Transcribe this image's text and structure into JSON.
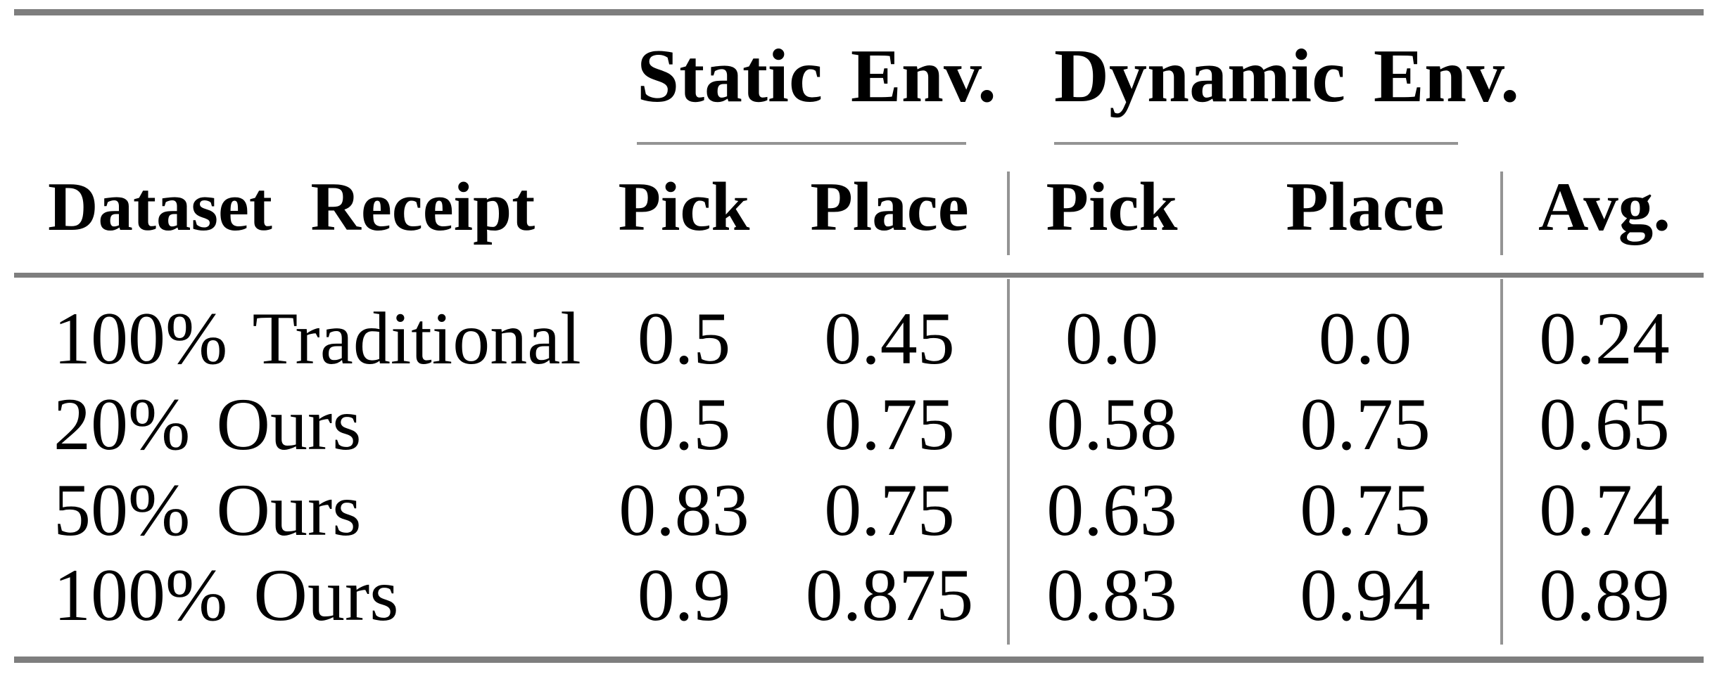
{
  "table": {
    "column_groups": [
      {
        "label": "Static Env.",
        "columns": [
          "Pick",
          "Place"
        ]
      },
      {
        "label": "Dynamic Env.",
        "columns": [
          "Pick",
          "Place"
        ]
      }
    ],
    "header": {
      "row_label": "Dataset Receipt",
      "static_pick": "Pick",
      "static_place": "Place",
      "dynamic_pick": "Pick",
      "dynamic_place": "Place",
      "avg": "Avg."
    },
    "rows": [
      {
        "label": "100% Traditional",
        "static_pick": "0.5",
        "static_place": "0.45",
        "dynamic_pick": "0.0",
        "dynamic_place": "0.0",
        "avg": "0.24"
      },
      {
        "label": "20% Ours",
        "static_pick": "0.5",
        "static_place": "0.75",
        "dynamic_pick": "0.58",
        "dynamic_place": "0.75",
        "avg": "0.65"
      },
      {
        "label": "50% Ours",
        "static_pick": "0.83",
        "static_place": "0.75",
        "dynamic_pick": "0.63",
        "dynamic_place": "0.75",
        "avg": "0.74"
      },
      {
        "label": "100% Ours",
        "static_pick": "0.9",
        "static_place": "0.875",
        "dynamic_pick": "0.83",
        "dynamic_place": "0.94",
        "avg": "0.89"
      }
    ]
  },
  "colors": {
    "text": "#000000",
    "background": "#ffffff",
    "rule_heavy": "#7e7e7e",
    "rule_light": "#949494"
  },
  "chart_data": {
    "type": "table",
    "title": "",
    "column_groups": [
      "",
      "Static Env.",
      "Static Env.",
      "Dynamic Env.",
      "Dynamic Env.",
      ""
    ],
    "columns": [
      "Dataset Receipt",
      "Pick",
      "Place",
      "Pick",
      "Place",
      "Avg."
    ],
    "rows": [
      [
        "100% Traditional",
        0.5,
        0.45,
        0.0,
        0.0,
        0.24
      ],
      [
        "20% Ours",
        0.5,
        0.75,
        0.58,
        0.75,
        0.65
      ],
      [
        "50% Ours",
        0.83,
        0.75,
        0.63,
        0.75,
        0.74
      ],
      [
        "100% Ours",
        0.9,
        0.875,
        0.83,
        0.94,
        0.89
      ]
    ]
  }
}
